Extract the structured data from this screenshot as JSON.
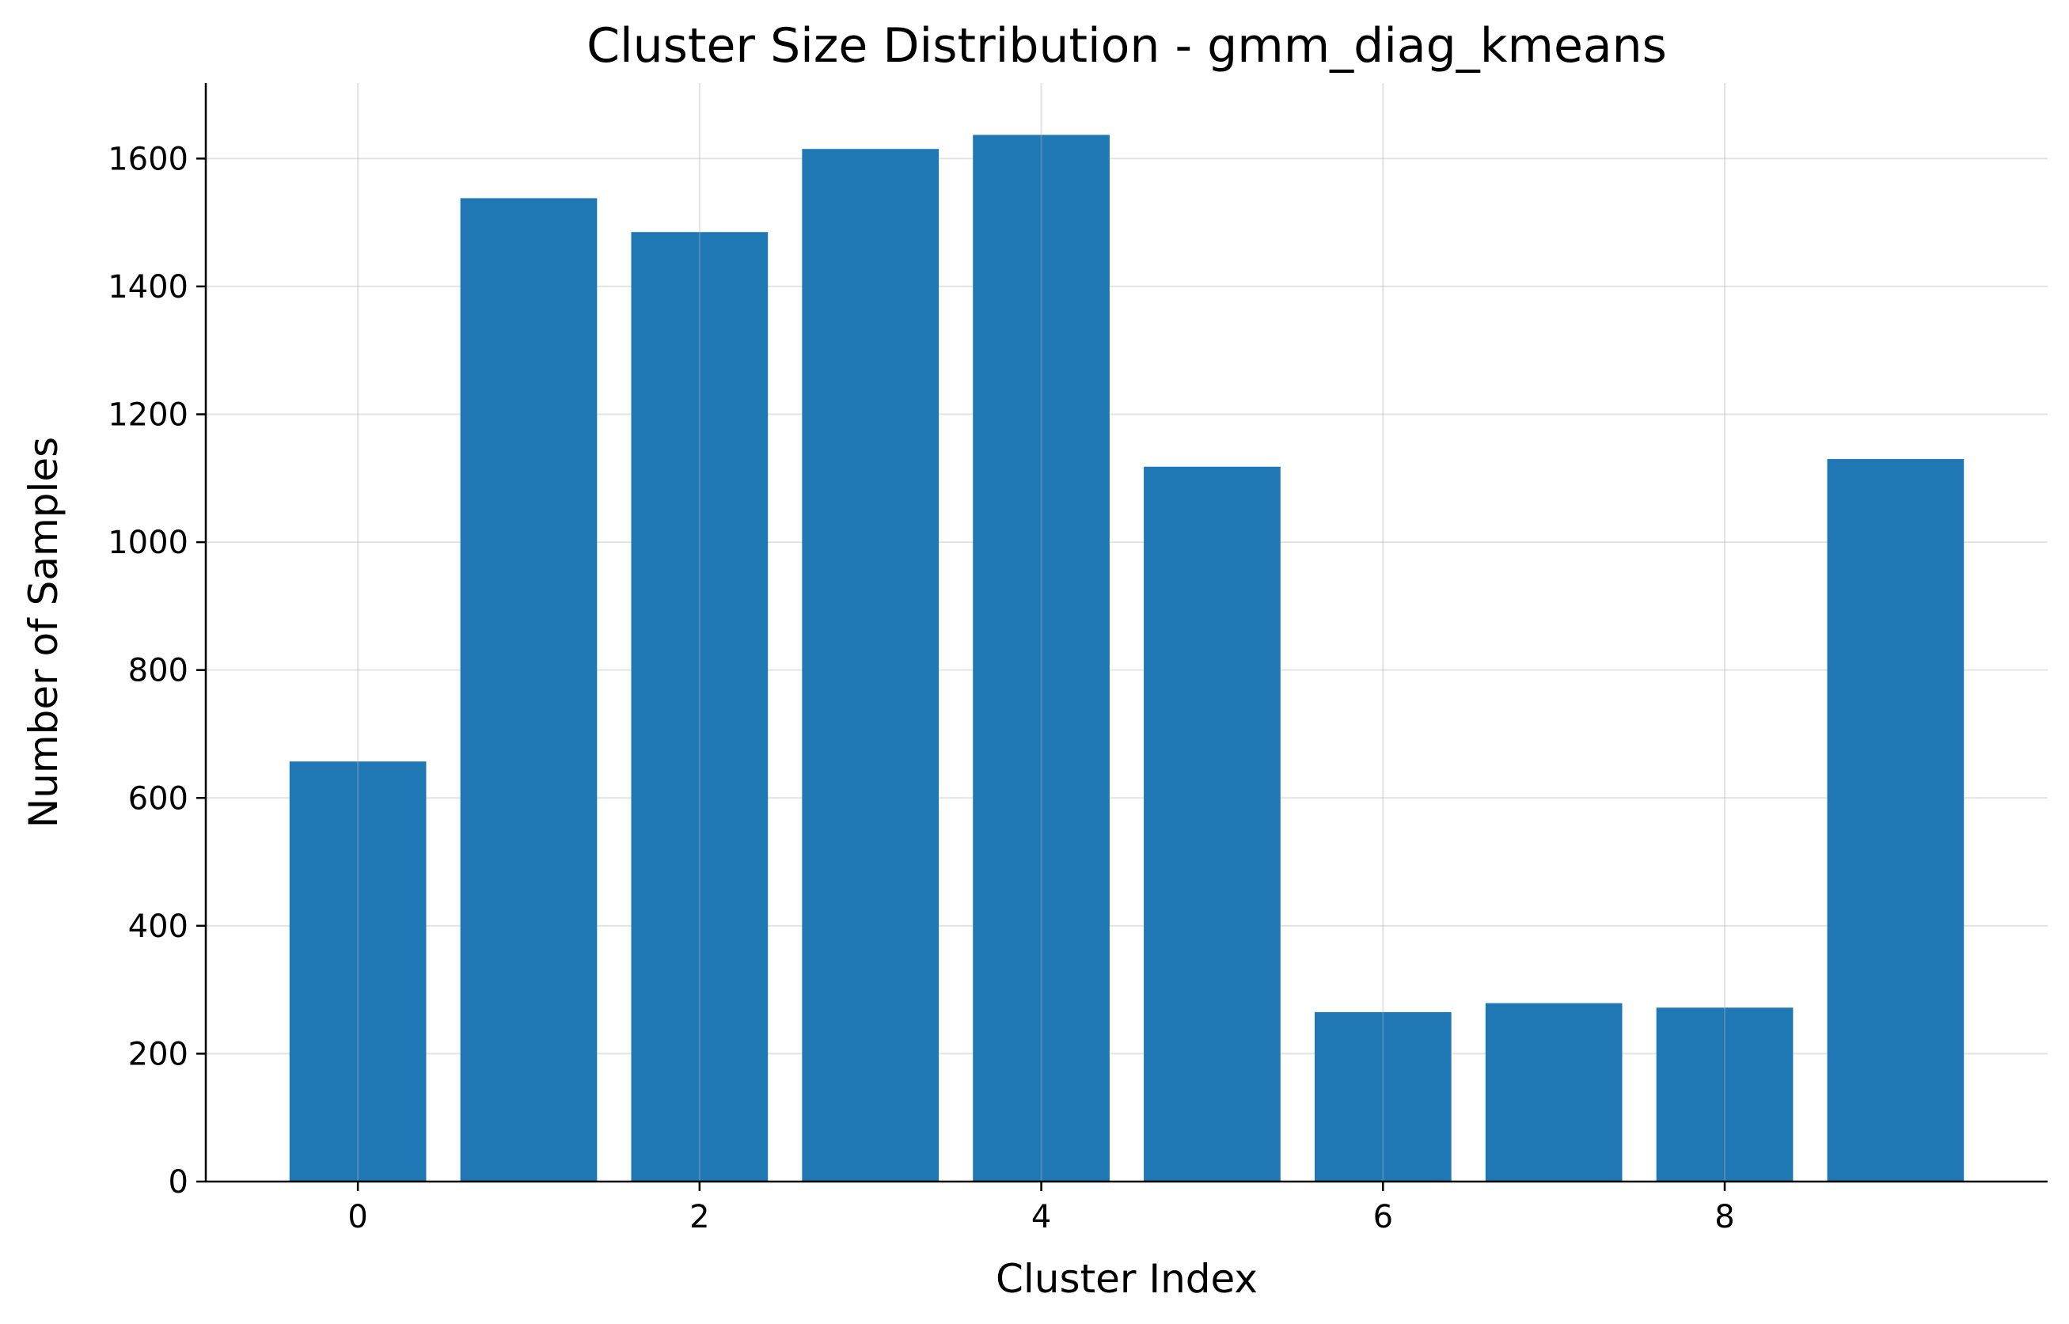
{
  "chart_data": {
    "type": "bar",
    "title": "Cluster Size Distribution - gmm_diag_kmeans",
    "xlabel": "Cluster Index",
    "ylabel": "Number of Samples",
    "categories": [
      0,
      1,
      2,
      3,
      4,
      5,
      6,
      7,
      8,
      9
    ],
    "values": [
      657,
      1538,
      1485,
      1615,
      1637,
      1118,
      265,
      279,
      272,
      1130
    ],
    "xlim": [
      -0.89,
      9.89
    ],
    "ylim": [
      0,
      1718
    ],
    "xticks": [
      0,
      2,
      4,
      6,
      8
    ],
    "yticks": [
      0,
      200,
      400,
      600,
      800,
      1000,
      1200,
      1400,
      1600
    ],
    "bar_color": "#1f77b4",
    "grid": true
  }
}
